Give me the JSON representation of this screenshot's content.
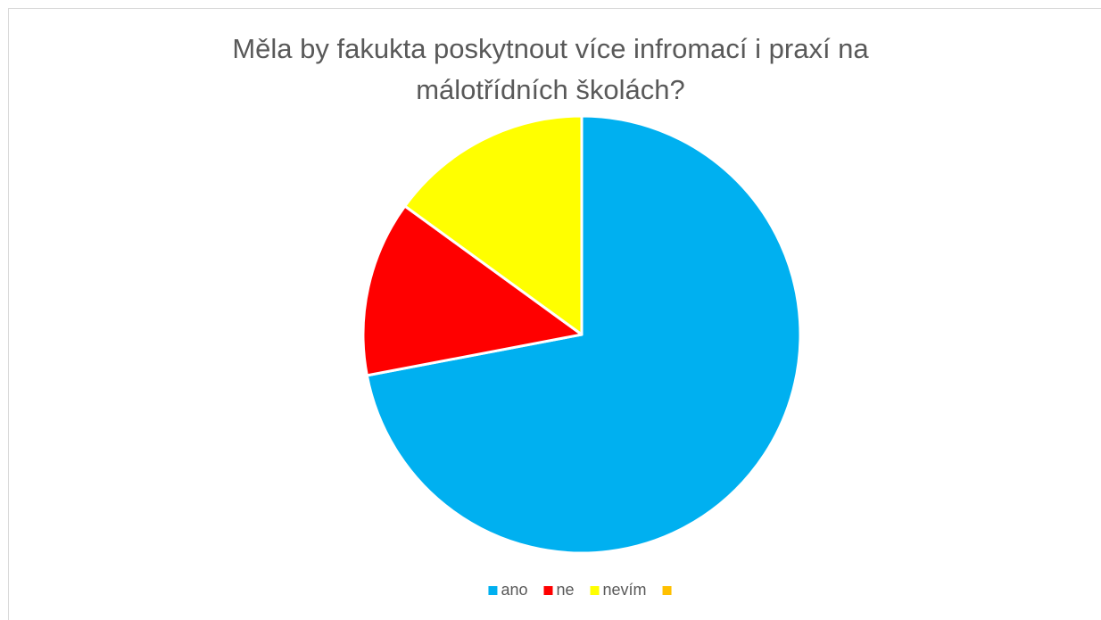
{
  "chart_data": {
    "type": "pie",
    "title": "Měla by fakukta poskytnout více infromací i praxí na málotřídních školách?",
    "categories": [
      "ano",
      "ne",
      "nevím",
      null
    ],
    "values": [
      72,
      13,
      15,
      0
    ],
    "colors": [
      "#00b0f0",
      "#ff0000",
      "#ffff00",
      "#ffc000"
    ],
    "legend": "bottom"
  }
}
